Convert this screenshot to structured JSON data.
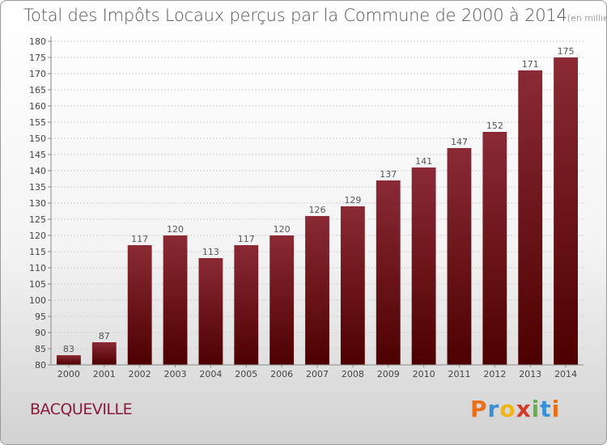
{
  "header": {
    "title": "Total des Impôts Locaux perçus par la Commune de 2000 à 2014",
    "unit": "(en milliers d'€)"
  },
  "footer": {
    "commune": "BACQUEVILLE",
    "logo_letters": [
      "P",
      "r",
      "o",
      "x",
      "i",
      "t",
      "i"
    ]
  },
  "colors": {
    "bar_top": "#8a2a35",
    "bar_bottom": "#4d0000",
    "grid": "#d0d0d0",
    "axis": "#888888"
  },
  "chart_data": {
    "type": "bar",
    "categories": [
      "2000",
      "2001",
      "2002",
      "2003",
      "2004",
      "2005",
      "2006",
      "2007",
      "2008",
      "2009",
      "2010",
      "2011",
      "2012",
      "2013",
      "2014"
    ],
    "values": [
      83,
      87,
      117,
      120,
      113,
      117,
      120,
      126,
      129,
      137,
      141,
      147,
      152,
      171,
      175
    ],
    "ylim": [
      80,
      180
    ],
    "ytick_step": 5,
    "grid": true,
    "data_labels": true
  }
}
